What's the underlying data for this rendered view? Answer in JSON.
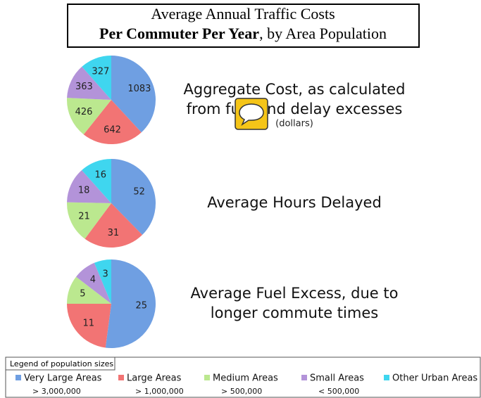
{
  "header": {
    "line1": "Average Annual Traffic Costs",
    "line2_bold": "Per Commuter Per Year",
    "line2_rest": ", by Area Population"
  },
  "legend": {
    "title": "Legend of population sizes",
    "categories": [
      "Very Large Areas",
      "Large Areas",
      "Medium Areas",
      "Small Areas",
      "Other Urban Areas"
    ],
    "notes": [
      "> 3,000,000",
      "> 1,000,000",
      "> 500,000",
      "< 500,000",
      null
    ],
    "colors": [
      "#6f9fe2",
      "#f27474",
      "#bbe88f",
      "#b393d9",
      "#3fd6ef"
    ]
  },
  "chart_data": [
    {
      "type": "pie",
      "title": [
        "Aggregate Cost, as calculated",
        "from fuel and delay excesses"
      ],
      "subtitle": "(dollars)",
      "values": [
        1083,
        642,
        426,
        363,
        327
      ]
    },
    {
      "type": "pie",
      "title": [
        "Average Hours Delayed"
      ],
      "values": [
        52,
        31,
        21,
        18,
        16
      ]
    },
    {
      "type": "pie",
      "title": [
        "Average Fuel Excess, due to",
        "longer commute times"
      ],
      "values": [
        25,
        11,
        5,
        4,
        3
      ]
    }
  ]
}
